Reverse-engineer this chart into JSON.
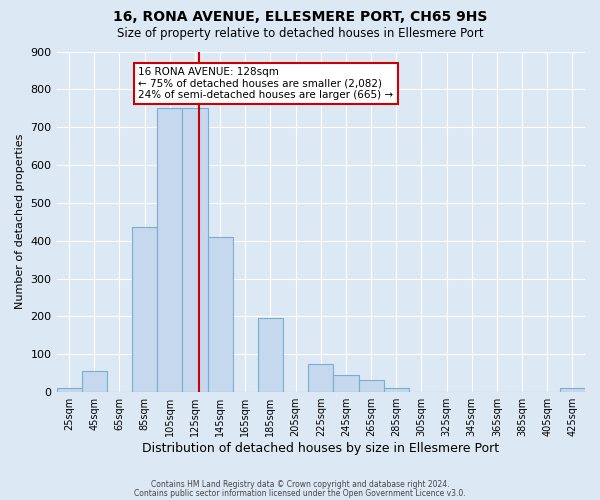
{
  "title": "16, RONA AVENUE, ELLESMERE PORT, CH65 9HS",
  "subtitle": "Size of property relative to detached houses in Ellesmere Port",
  "xlabel": "Distribution of detached houses by size in Ellesmere Port",
  "ylabel": "Number of detached properties",
  "bar_values": [
    10,
    57,
    0,
    435,
    750,
    750,
    410,
    0,
    197,
    0,
    75,
    46,
    32,
    10,
    0,
    0,
    0,
    0,
    0,
    0,
    10
  ],
  "bin_left_edges": [
    15,
    35,
    55,
    75,
    95,
    115,
    135,
    155,
    175,
    195,
    215,
    235,
    255,
    275,
    295,
    315,
    335,
    355,
    375,
    395,
    415
  ],
  "bin_width": 20,
  "bin_labels": [
    "25sqm",
    "45sqm",
    "65sqm",
    "85sqm",
    "105sqm",
    "125sqm",
    "145sqm",
    "165sqm",
    "185sqm",
    "205sqm",
    "225sqm",
    "245sqm",
    "265sqm",
    "285sqm",
    "305sqm",
    "325sqm",
    "345sqm",
    "365sqm",
    "385sqm",
    "405sqm",
    "425sqm"
  ],
  "bar_color": "#c5d8ee",
  "bar_edge_color": "#7aadce",
  "property_value": 128,
  "vline_color": "#cc0000",
  "annotation_line1": "16 RONA AVENUE: 128sqm",
  "annotation_line2": "← 75% of detached houses are smaller (2,082)",
  "annotation_line3": "24% of semi-detached houses are larger (665) →",
  "annotation_box_color": "#ffffff",
  "annotation_box_edge_color": "#cc0000",
  "ylim": [
    0,
    900
  ],
  "yticks": [
    0,
    100,
    200,
    300,
    400,
    500,
    600,
    700,
    800,
    900
  ],
  "footer1": "Contains HM Land Registry data © Crown copyright and database right 2024.",
  "footer2": "Contains public sector information licensed under the Open Government Licence v3.0.",
  "bg_color": "#dde8f5",
  "plot_bg_color": "#dde8f5",
  "grid_color": "#ffffff",
  "title_fontsize": 10,
  "subtitle_fontsize": 8.5,
  "tick_fontsize": 7,
  "ylabel_fontsize": 8,
  "xlabel_fontsize": 9
}
